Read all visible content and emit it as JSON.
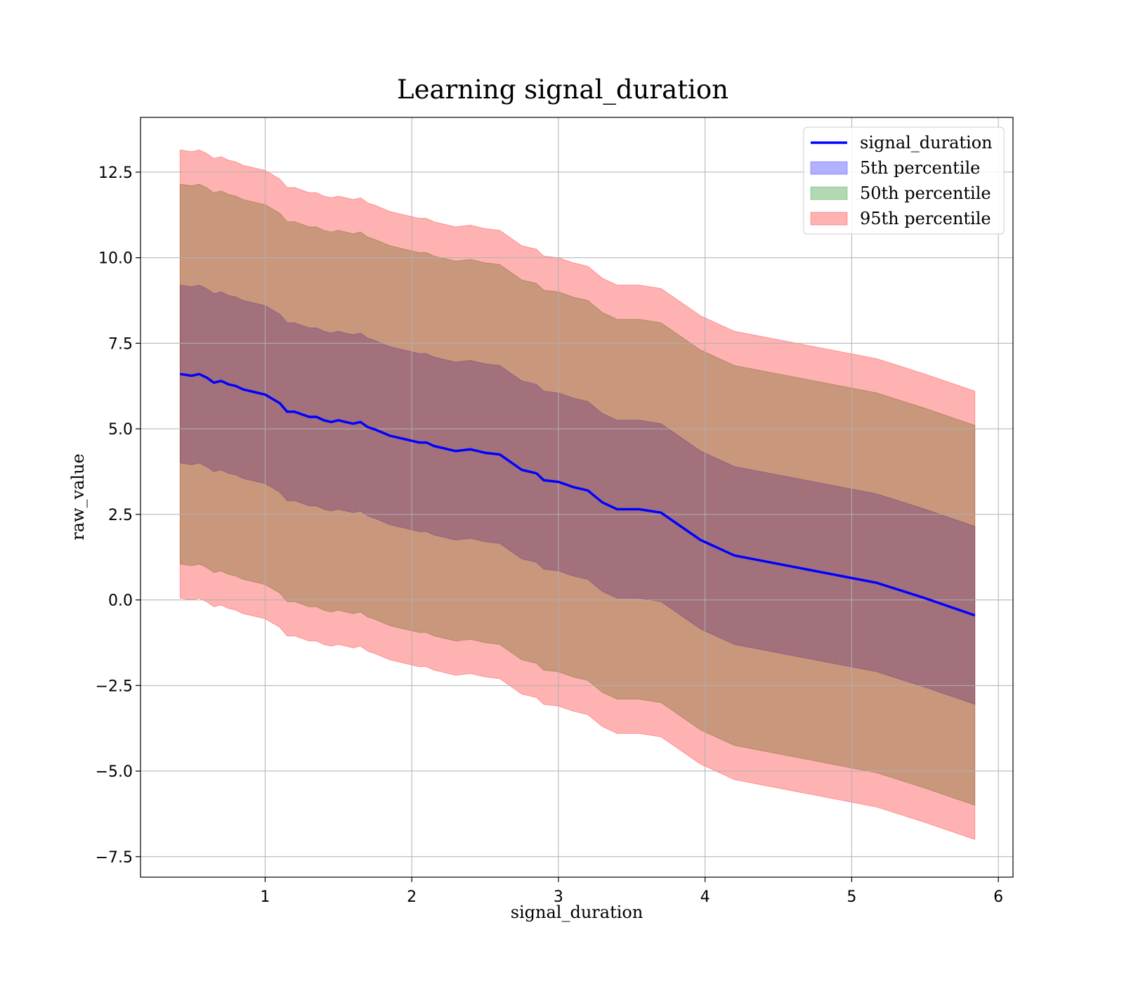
{
  "chart_data": {
    "type": "area",
    "title": "Learning signal_duration",
    "xlabel": "signal_duration",
    "ylabel": "raw_value",
    "xlim": [
      0.15,
      6.1
    ],
    "ylim": [
      -8.1,
      14.1
    ],
    "xticks": [
      1,
      2,
      3,
      4,
      5,
      6
    ],
    "xtick_labels": [
      "1",
      "2",
      "3",
      "4",
      "5",
      "6"
    ],
    "yticks": [
      -7.5,
      -5.0,
      -2.5,
      0.0,
      2.5,
      5.0,
      7.5,
      10.0,
      12.5
    ],
    "ytick_labels": [
      "−7.5",
      "−5.0",
      "−2.5",
      "0.0",
      "2.5",
      "5.0",
      "7.5",
      "10.0",
      "12.5"
    ],
    "grid": true,
    "legend_position": "top-right",
    "x": [
      0.42,
      0.5,
      0.55,
      0.6,
      0.65,
      0.7,
      0.75,
      0.8,
      0.85,
      0.9,
      1.0,
      1.1,
      1.15,
      1.2,
      1.3,
      1.35,
      1.4,
      1.45,
      1.5,
      1.55,
      1.6,
      1.65,
      1.7,
      1.75,
      1.85,
      1.95,
      2.05,
      2.1,
      2.15,
      2.2,
      2.3,
      2.4,
      2.5,
      2.6,
      2.75,
      2.85,
      2.9,
      3.0,
      3.1,
      3.2,
      3.3,
      3.4,
      3.55,
      3.7,
      3.97,
      4.2,
      5.17,
      5.5,
      5.84
    ],
    "series": [
      {
        "name": "signal_duration",
        "kind": "line",
        "color": "#0000ff",
        "values": [
          6.6,
          6.55,
          6.6,
          6.5,
          6.35,
          6.4,
          6.3,
          6.25,
          6.15,
          6.1,
          6.0,
          5.75,
          5.5,
          5.5,
          5.35,
          5.35,
          5.25,
          5.2,
          5.25,
          5.2,
          5.15,
          5.2,
          5.05,
          4.98,
          4.8,
          4.7,
          4.6,
          4.6,
          4.5,
          4.45,
          4.35,
          4.4,
          4.3,
          4.25,
          3.8,
          3.7,
          3.5,
          3.45,
          3.3,
          3.2,
          2.85,
          2.65,
          2.65,
          2.55,
          1.75,
          1.3,
          0.5,
          0.05,
          -0.45
        ]
      },
      {
        "name": "5th percentile",
        "kind": "band",
        "color": "#0000ff",
        "offset": 2.6
      },
      {
        "name": "50th percentile",
        "kind": "band",
        "color": "#008000",
        "offset": 5.55
      },
      {
        "name": "95th percentile",
        "kind": "band",
        "color": "#ff0000",
        "offset": 6.55
      }
    ]
  }
}
